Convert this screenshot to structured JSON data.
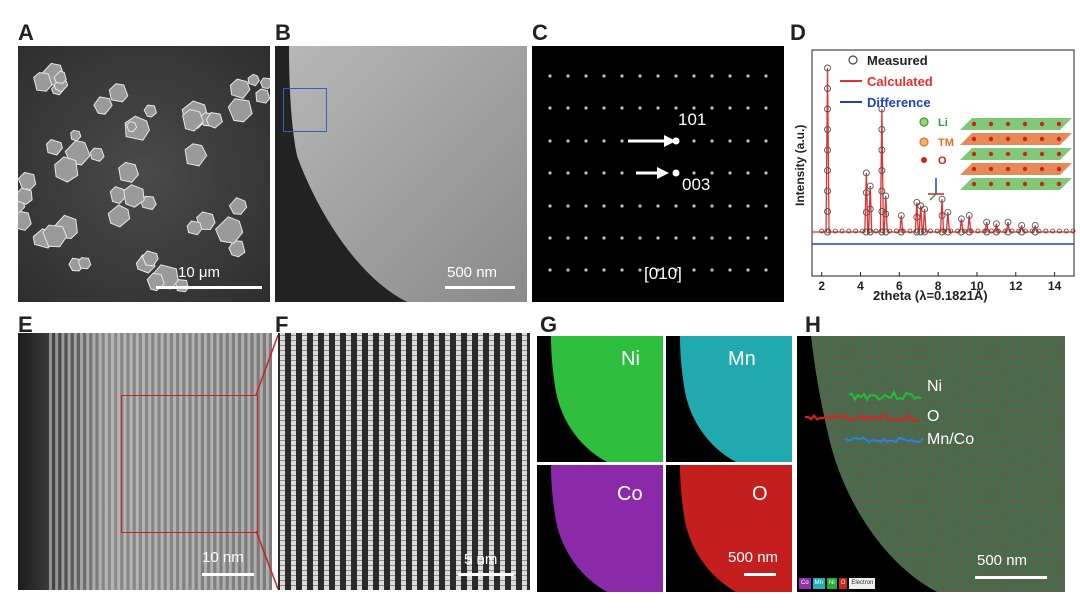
{
  "panels": {
    "A": {
      "label": "A",
      "scalebar": "10 μm"
    },
    "B": {
      "label": "B",
      "scalebar": "500 nm"
    },
    "C": {
      "label": "C",
      "spot_101": "101",
      "spot_003": "003",
      "zone_axis": "[010]"
    },
    "D": {
      "label": "D",
      "legend": {
        "measured": "Measured",
        "calculated": "Calculated",
        "difference": "Difference"
      },
      "structure_legend": {
        "li": "Li",
        "tm": "TM",
        "o": "O"
      },
      "ylabel": "Intensity (a.u.)",
      "xlabel": "2theta (λ=0.1821Å)",
      "xticks": [
        "2",
        "4",
        "6",
        "8",
        "10",
        "12",
        "14"
      ]
    },
    "E": {
      "label": "E",
      "scalebar": "10 nm"
    },
    "F": {
      "label": "F",
      "scalebar": "5 nm"
    },
    "G": {
      "label": "G",
      "maps": {
        "ni": "Ni",
        "mn": "Mn",
        "co": "Co",
        "o": "O"
      },
      "scalebar": "500 nm"
    },
    "H": {
      "label": "H",
      "lines": {
        "ni": "Ni",
        "o": "O",
        "mnco": "Mn/Co"
      },
      "scalebar": "500 nm",
      "mini_legend": {
        "co": "Co",
        "mn": "Mn",
        "ni": "Ni",
        "o": "O",
        "electron": "Electron"
      }
    }
  },
  "colors": {
    "ni": "#20b030",
    "mn": "#20b0b8",
    "co": "#9030b0",
    "o": "#d02020",
    "calc": "#e03030",
    "diff": "#2040c0",
    "zoom_box": "#d02020",
    "select_box": "#3060c0"
  },
  "chart_data": {
    "type": "line",
    "xlabel": "2theta (λ=0.1821Å)",
    "ylabel": "Intensity (a.u.)",
    "xlim": [
      1.5,
      15
    ],
    "xticks": [
      2,
      4,
      6,
      8,
      10,
      12,
      14
    ],
    "series": [
      {
        "name": "Measured",
        "style": "open-circles",
        "x": [
          2.3,
          4.3,
          4.5,
          5.1,
          5.3,
          6.1,
          6.9,
          7.1,
          7.3,
          8.2,
          8.5,
          9.2,
          9.6,
          10.5,
          11.0,
          11.6,
          12.3,
          13.0
        ],
        "y": [
          100,
          36,
          28,
          75,
          22,
          10,
          18,
          16,
          14,
          20,
          12,
          8,
          10,
          6,
          5,
          6,
          4,
          4
        ]
      },
      {
        "name": "Calculated",
        "style": "line",
        "x": [
          2.3,
          4.3,
          4.5,
          5.1,
          5.3,
          6.1,
          6.9,
          7.1,
          7.3,
          8.2,
          8.5,
          9.2,
          9.6,
          10.5,
          11.0,
          11.6,
          12.3,
          13.0
        ],
        "y": [
          100,
          36,
          28,
          75,
          22,
          10,
          18,
          16,
          14,
          20,
          12,
          8,
          10,
          6,
          5,
          6,
          4,
          4
        ]
      },
      {
        "name": "Difference",
        "style": "line",
        "x": [
          2,
          15
        ],
        "y": [
          0,
          0
        ]
      }
    ]
  }
}
